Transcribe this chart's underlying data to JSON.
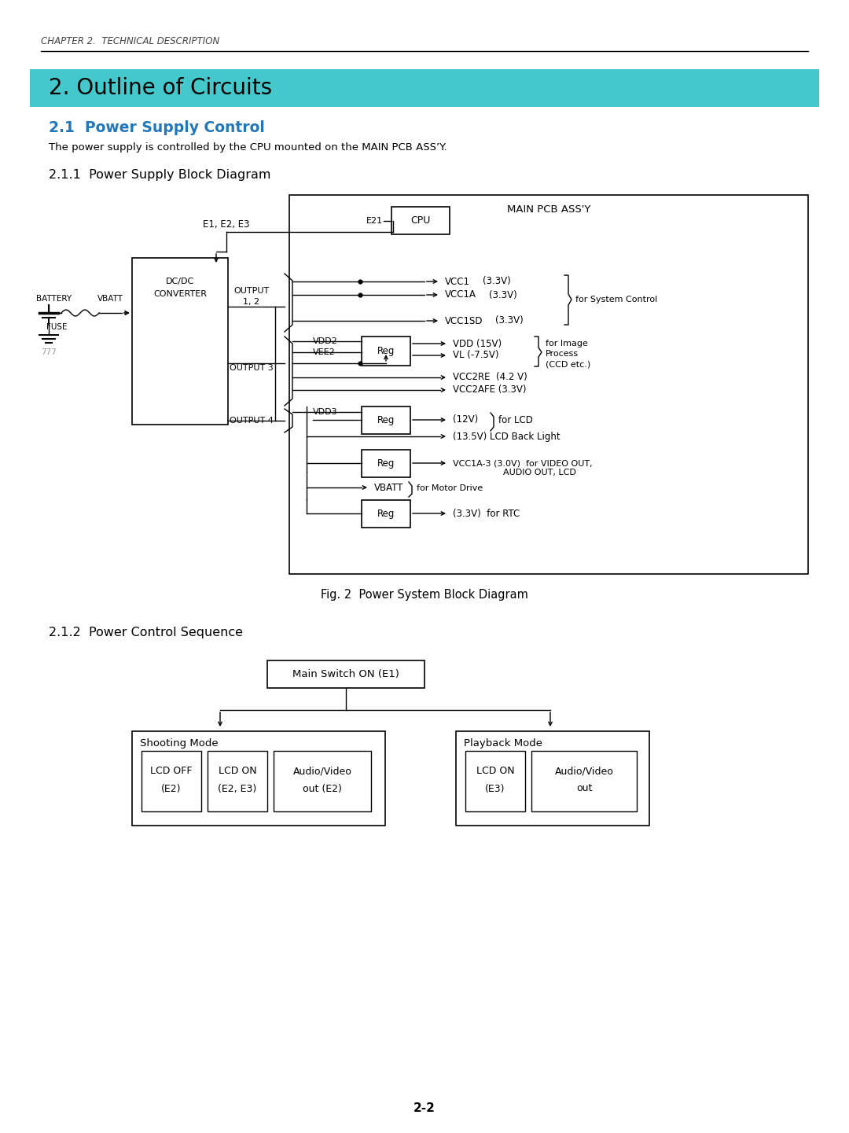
{
  "page_width": 10.8,
  "page_height": 14.41,
  "bg_color": "#ffffff",
  "header_text": "CHAPTER 2.  TECHNICAL DESCRIPTION",
  "section_title": "2. Outline of Circuits",
  "section_bg": "#44c8cc",
  "subsection_title": "2.1  Power Supply Control",
  "subsection_color": "#2277bb",
  "body_text": "The power supply is controlled by the CPU mounted on the MAIN PCB ASS’Y.",
  "sub2_title": "2.1.1  Power Supply Block Diagram",
  "sub3_title": "2.1.2  Power Control Sequence",
  "fig_caption": "Fig. 2  Power System Block Diagram",
  "page_number": "2-2"
}
